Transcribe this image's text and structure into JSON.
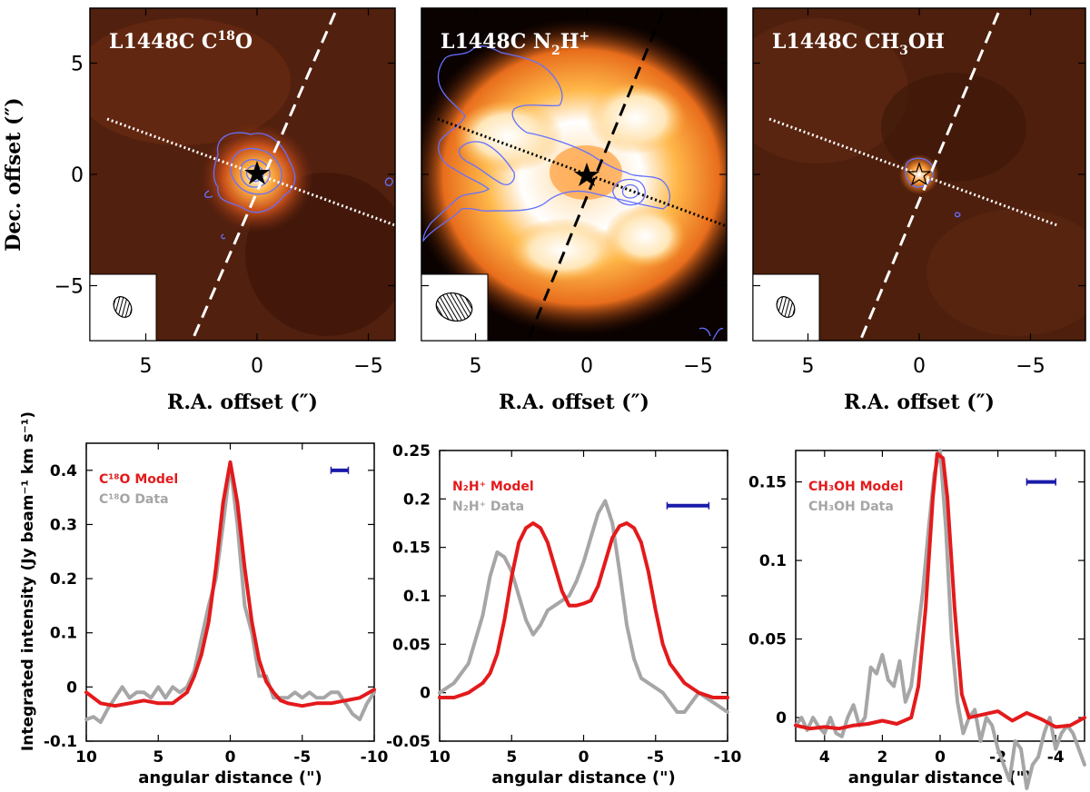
{
  "top_row": {
    "ylabel": "Dec. offset (″)",
    "xlabel": "R.A. offset (″)",
    "panels": [
      {
        "title_prefix": "L1448C C",
        "title_sup": "18",
        "title_suffix": "O",
        "cut_line_color": "#ffffff"
      },
      {
        "title_prefix": "L1448C N",
        "title_sub": "2",
        "title_mid": "H",
        "title_sup": "+",
        "cut_line_color": "#000000"
      },
      {
        "title_prefix": "L1448C CH",
        "title_sub": "3",
        "title_suffix": "OH",
        "cut_line_color": "#ffffff"
      }
    ],
    "xticks": [
      "5",
      "0",
      "−5"
    ],
    "yticks": [
      "5",
      "0",
      "−5"
    ],
    "colors": {
      "contour": "#6670ff",
      "star": "#000000",
      "colormap": "black-red-orange-white"
    }
  },
  "chart_data": [
    {
      "type": "line",
      "xlabel": "angular distance (\")",
      "ylabel": "Integrated intensity (Jy beam⁻¹ km s⁻¹)",
      "xlim": [
        10,
        -10
      ],
      "ylim": [
        -0.1,
        0.45
      ],
      "xticks": [
        10,
        5,
        0,
        -5,
        -10
      ],
      "yticks": [
        -0.1,
        0,
        0.1,
        0.2,
        0.3,
        0.4
      ],
      "ytick_labels": [
        "-0.1",
        "0",
        "0.1",
        "0.2",
        "0.3",
        "0.4"
      ],
      "legend": [
        "C¹⁸O Model",
        "C¹⁸O Data"
      ],
      "legend_placement": "top-left",
      "beam_bar": {
        "x": [
          -7,
          -8.2
        ],
        "y": 0.4
      },
      "series": [
        {
          "name": "C¹⁸O Model",
          "color": "#e31a1c",
          "x": [
            10,
            9,
            8,
            7,
            6,
            5,
            4,
            3.5,
            3,
            2.5,
            2,
            1.5,
            1,
            0.5,
            0,
            -0.5,
            -1,
            -1.5,
            -2,
            -2.5,
            -3,
            -3.5,
            -4,
            -5,
            -6,
            -7,
            -8,
            -9,
            -10
          ],
          "y": [
            -0.01,
            -0.03,
            -0.035,
            -0.03,
            -0.025,
            -0.03,
            -0.03,
            -0.02,
            -0.01,
            0.02,
            0.06,
            0.12,
            0.22,
            0.34,
            0.415,
            0.34,
            0.22,
            0.12,
            0.05,
            0.01,
            -0.01,
            -0.025,
            -0.03,
            -0.035,
            -0.03,
            -0.03,
            -0.025,
            -0.02,
            -0.005
          ]
        },
        {
          "name": "C¹⁸O Data",
          "color": "#a6a6a6",
          "x": [
            10,
            9.5,
            9,
            8.5,
            8,
            7.5,
            7,
            6.5,
            6,
            5.5,
            5,
            4.5,
            4,
            3.5,
            3,
            2.5,
            2,
            1.5,
            1,
            0.5,
            0,
            -0.5,
            -1,
            -1.5,
            -2,
            -2.5,
            -3,
            -3.5,
            -4,
            -4.5,
            -5,
            -5.5,
            -6,
            -6.5,
            -7,
            -7.5,
            -8,
            -8.5,
            -9,
            -9.5,
            -10
          ],
          "y": [
            -0.06,
            -0.055,
            -0.065,
            -0.04,
            -0.02,
            0.0,
            -0.02,
            -0.01,
            -0.01,
            -0.02,
            0.0,
            -0.02,
            0.0,
            -0.01,
            0.0,
            0.03,
            0.09,
            0.15,
            0.2,
            0.3,
            0.41,
            0.3,
            0.15,
            0.1,
            0.02,
            0.02,
            -0.02,
            -0.02,
            -0.02,
            -0.01,
            -0.02,
            -0.01,
            -0.02,
            -0.02,
            -0.01,
            -0.01,
            -0.03,
            -0.05,
            -0.06,
            -0.03,
            -0.01
          ]
        }
      ]
    },
    {
      "type": "line",
      "xlabel": "angular distance (\")",
      "xlim": [
        10,
        -10
      ],
      "ylim": [
        -0.05,
        0.25
      ],
      "xticks": [
        10,
        5,
        0,
        -5,
        -10
      ],
      "yticks": [
        -0.05,
        0,
        0.05,
        0.1,
        0.15,
        0.2,
        0.25
      ],
      "ytick_labels": [
        "-0.05",
        "0",
        "0.05",
        "0.1",
        "0.15",
        "0.2",
        "0.25"
      ],
      "legend": [
        "N₂H⁺ Model",
        "N₂H⁺ Data"
      ],
      "legend_placement": "top-left",
      "beam_bar": {
        "x": [
          -5.8,
          -8.7
        ],
        "y": 0.193
      },
      "series": [
        {
          "name": "N₂H⁺ Model",
          "color": "#e31a1c",
          "x": [
            10,
            9,
            8,
            7,
            6.5,
            6,
            5.5,
            5,
            4.5,
            4,
            3.5,
            3,
            2.5,
            2,
            1.5,
            1,
            0.5,
            0,
            -0.5,
            -1,
            -1.5,
            -2,
            -2.5,
            -3,
            -3.5,
            -4,
            -4.5,
            -5,
            -5.5,
            -6,
            -7,
            -8,
            -9,
            -10
          ],
          "y": [
            -0.005,
            -0.005,
            0.0,
            0.01,
            0.02,
            0.04,
            0.075,
            0.12,
            0.155,
            0.17,
            0.175,
            0.17,
            0.155,
            0.13,
            0.105,
            0.09,
            0.09,
            0.092,
            0.095,
            0.11,
            0.135,
            0.16,
            0.172,
            0.175,
            0.17,
            0.155,
            0.125,
            0.085,
            0.05,
            0.03,
            0.01,
            0.0,
            -0.005,
            -0.005
          ]
        },
        {
          "name": "N₂H⁺ Data",
          "color": "#a6a6a6",
          "x": [
            10,
            9,
            8,
            7,
            6.5,
            6,
            5.5,
            5,
            4.5,
            4,
            3.5,
            3,
            2.5,
            2,
            1.5,
            1,
            0.5,
            0,
            -0.5,
            -1,
            -1.5,
            -2,
            -2.5,
            -3,
            -3.5,
            -4,
            -4.5,
            -5,
            -5.5,
            -6,
            -6.5,
            -7,
            -8,
            -9,
            -10
          ],
          "y": [
            0.0,
            0.01,
            0.03,
            0.08,
            0.12,
            0.145,
            0.14,
            0.125,
            0.1,
            0.075,
            0.06,
            0.07,
            0.085,
            0.09,
            0.095,
            0.1,
            0.115,
            0.135,
            0.16,
            0.185,
            0.198,
            0.175,
            0.125,
            0.07,
            0.035,
            0.015,
            0.01,
            0.005,
            0.0,
            -0.01,
            -0.02,
            -0.02,
            0.0,
            -0.01,
            -0.02
          ]
        }
      ]
    },
    {
      "type": "line",
      "xlabel": "angular distance (\")",
      "xlim": [
        5,
        -5
      ],
      "ylim": [
        -0.015,
        0.17
      ],
      "xticks": [
        4,
        2,
        0,
        -2,
        -4
      ],
      "yticks": [
        0,
        0.05,
        0.1,
        0.15
      ],
      "ytick_labels": [
        "0",
        "0.05",
        "0.1",
        "0.15"
      ],
      "legend": [
        "CH₃OH Model",
        "CH₃OH Data"
      ],
      "legend_placement": "top-left",
      "beam_bar": {
        "x": [
          -3,
          -4
        ],
        "y": 0.15
      },
      "series": [
        {
          "name": "CH₃OH Model",
          "color": "#e31a1c",
          "x": [
            5,
            4.5,
            4,
            3.5,
            3,
            2.5,
            2,
            1.5,
            1,
            0.75,
            0.5,
            0.25,
            0.1,
            -0.1,
            -0.25,
            -0.5,
            -0.75,
            -1,
            -1.5,
            -2,
            -2.5,
            -3,
            -3.5,
            -4,
            -4.5,
            -5
          ],
          "y": [
            -0.005,
            -0.007,
            -0.006,
            -0.007,
            -0.005,
            -0.004,
            -0.002,
            -0.004,
            0.0,
            0.02,
            0.07,
            0.14,
            0.168,
            0.165,
            0.14,
            0.07,
            0.015,
            0.0,
            0.002,
            0.004,
            -0.002,
            0.003,
            -0.001,
            -0.006,
            -0.005,
            0.0
          ]
        },
        {
          "name": "CH₃OH Data",
          "color": "#a6a6a6",
          "x": [
            5,
            4.8,
            4.6,
            4.4,
            4.2,
            4,
            3.8,
            3.6,
            3.4,
            3.2,
            3,
            2.8,
            2.6,
            2.4,
            2.2,
            2,
            1.8,
            1.6,
            1.4,
            1.2,
            1,
            0.8,
            0.6,
            0.4,
            0.2,
            0,
            -0.2,
            -0.4,
            -0.6,
            -0.8,
            -1,
            -1.2,
            -1.4,
            -1.6,
            -1.8,
            -2,
            -2.2,
            -2.4,
            -2.6,
            -2.8,
            -3,
            -3.2,
            -3.4,
            -3.6,
            -3.8,
            -4,
            -4.2,
            -4.4,
            -4.6,
            -4.8,
            -5
          ],
          "y": [
            -0.005,
            0.0,
            -0.008,
            0.0,
            -0.006,
            -0.01,
            0.0,
            -0.01,
            -0.012,
            0.0,
            0.008,
            -0.005,
            0.0,
            0.032,
            0.028,
            0.04,
            0.024,
            0.02,
            0.036,
            0.01,
            0.02,
            0.05,
            0.08,
            0.12,
            0.155,
            0.17,
            0.12,
            0.05,
            0.01,
            -0.01,
            0.0,
            0.005,
            -0.015,
            0.0,
            -0.005,
            -0.02,
            -0.03,
            -0.04,
            -0.015,
            -0.02,
            -0.045,
            -0.03,
            -0.025,
            -0.01,
            0.0,
            -0.02,
            -0.01,
            -0.005,
            -0.01,
            -0.02,
            -0.03
          ]
        }
      ]
    }
  ]
}
